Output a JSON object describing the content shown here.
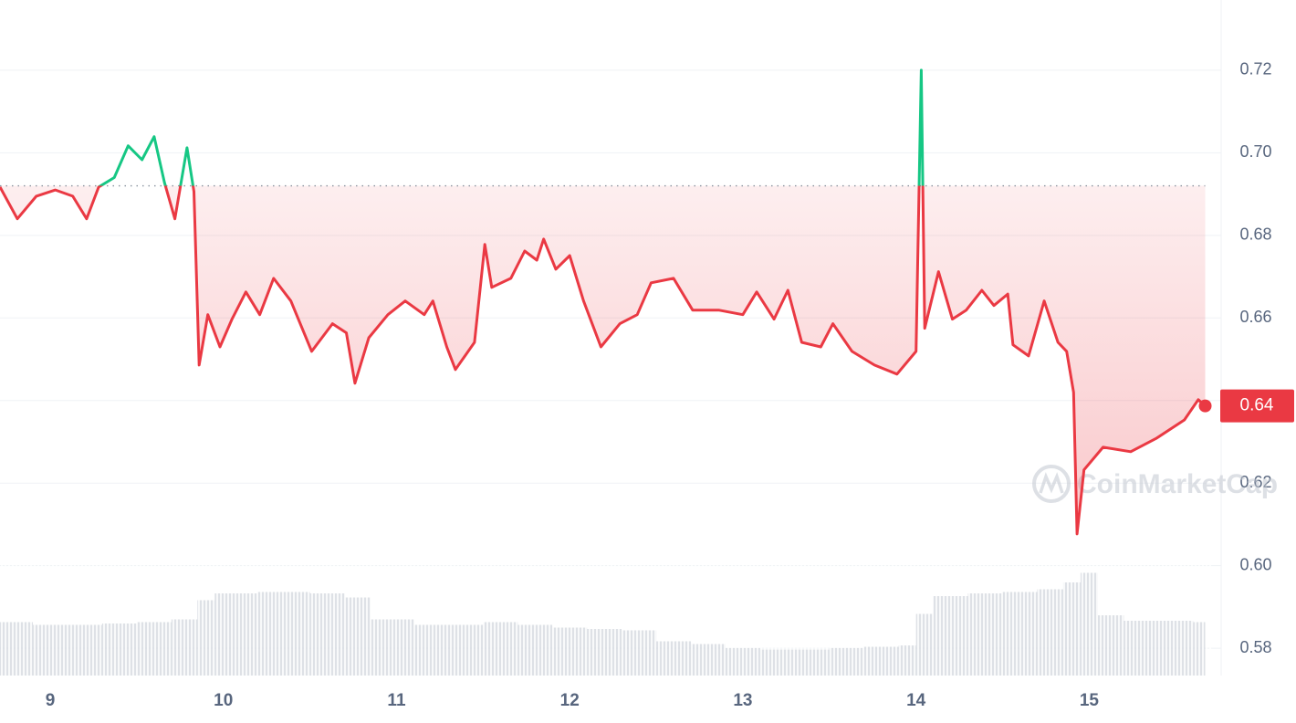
{
  "chart_data": {
    "type": "line",
    "x": [
      8.71,
      8.81,
      8.92,
      9.03,
      9.13,
      9.21,
      9.28,
      9.37,
      9.45,
      9.53,
      9.6,
      9.66,
      9.72,
      9.79,
      9.83,
      9.86,
      9.91,
      9.98,
      10.05,
      10.13,
      10.21,
      10.29,
      10.39,
      10.51,
      10.63,
      10.71,
      10.76,
      10.84,
      10.95,
      11.05,
      11.16,
      11.21,
      11.29,
      11.34,
      11.45,
      11.51,
      11.55,
      11.66,
      11.74,
      11.81,
      11.85,
      11.92,
      12.0,
      12.08,
      12.18,
      12.29,
      12.39,
      12.47,
      12.6,
      12.71,
      12.86,
      13.0,
      13.08,
      13.18,
      13.26,
      13.34,
      13.45,
      13.52,
      13.63,
      13.76,
      13.89,
      14.0,
      14.03,
      14.05,
      14.13,
      14.21,
      14.29,
      14.38,
      14.45,
      14.53,
      14.56,
      14.65,
      14.74,
      14.82,
      14.87,
      14.91,
      14.93,
      14.97,
      15.08,
      15.24,
      15.39,
      15.55,
      15.63,
      15.67
    ],
    "values": [
      0.6917,
      0.684,
      0.6895,
      0.691,
      0.6895,
      0.684,
      0.6917,
      0.694,
      0.7017,
      0.6983,
      0.7039,
      0.6928,
      0.684,
      0.7012,
      0.6906,
      0.6486,
      0.6608,
      0.653,
      0.6597,
      0.6663,
      0.6608,
      0.6696,
      0.6641,
      0.6519,
      0.6586,
      0.6564,
      0.6442,
      0.6552,
      0.6608,
      0.6641,
      0.6608,
      0.6641,
      0.653,
      0.6475,
      0.6541,
      0.6778,
      0.6674,
      0.6696,
      0.6762,
      0.674,
      0.6791,
      0.6718,
      0.6751,
      0.6641,
      0.653,
      0.6586,
      0.6608,
      0.6685,
      0.6696,
      0.6619,
      0.6619,
      0.6608,
      0.6663,
      0.6597,
      0.6667,
      0.6541,
      0.653,
      0.6586,
      0.6519,
      0.6486,
      0.6464,
      0.6519,
      0.72,
      0.6575,
      0.6712,
      0.6597,
      0.6619,
      0.6667,
      0.663,
      0.6658,
      0.6535,
      0.6508,
      0.6641,
      0.6541,
      0.6519,
      0.642,
      0.6077,
      0.6232,
      0.6287,
      0.6276,
      0.6309,
      0.6353,
      0.6402,
      0.6387
    ],
    "baseline": 0.692,
    "up_color": "#16c784",
    "down_color": "#ea3943",
    "volume": {
      "x": [
        8.71,
        8.9,
        9.1,
        9.3,
        9.5,
        9.7,
        9.85,
        9.95,
        10.2,
        10.5,
        10.7,
        10.85,
        11.1,
        11.3,
        11.5,
        11.7,
        11.9,
        12.1,
        12.3,
        12.5,
        12.7,
        12.9,
        13.1,
        13.3,
        13.5,
        13.7,
        13.9,
        14.0,
        14.1,
        14.3,
        14.5,
        14.7,
        14.85,
        14.95,
        15.05,
        15.2,
        15.4,
        15.6
      ],
      "values": [
        39,
        37,
        37,
        38,
        39,
        41,
        55,
        60,
        61,
        60,
        57,
        41,
        37,
        37,
        39,
        37,
        35,
        34,
        33,
        25,
        23,
        20,
        19,
        19,
        20,
        21,
        22,
        45,
        58,
        60,
        61,
        63,
        68,
        75,
        44,
        40,
        40,
        39
      ],
      "color": "#d3d7de"
    },
    "vlim": [
      0,
      100
    ],
    "xlim": [
      8.71,
      15.72
    ],
    "ylim": [
      0.5734,
      0.737
    ],
    "xticks": [
      9,
      10,
      11,
      12,
      13,
      14,
      15
    ],
    "yticks": [
      0.58,
      {
        "value": 0.6,
        "label": "0.60"
      },
      0.62,
      0.64,
      0.66,
      0.68,
      {
        "value": 0.7,
        "label": "0.70"
      },
      0.72
    ],
    "grid": true,
    "current_price": {
      "value": 0.6387,
      "label": "0.64"
    },
    "watermark": "CoinMarketCap"
  }
}
